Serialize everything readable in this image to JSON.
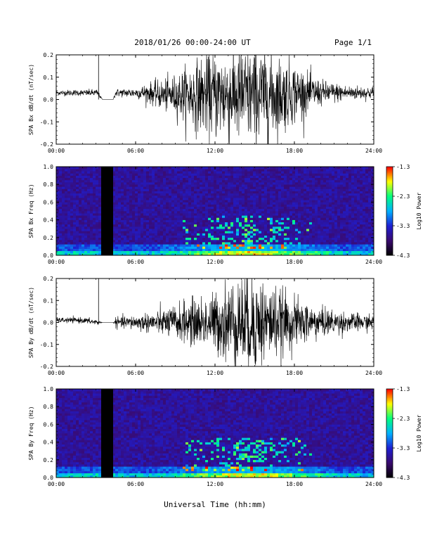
{
  "header": {
    "title": "2018/01/26  00:00-24:00 UT",
    "page": "Page 1/1"
  },
  "footer": {
    "xlabel": "Universal Time (hh:mm)"
  },
  "colors": {
    "background": "#ffffff",
    "trace": "#000000",
    "colormap": [
      "#000000",
      "#3a0a6e",
      "#1e1ed2",
      "#00b0ff",
      "#00ff80",
      "#ffff00",
      "#ff0000"
    ]
  },
  "chart_data": [
    {
      "type": "line",
      "ylabel": "SPA Bx dB/dt (nT/sec)",
      "x_range": [
        0,
        24
      ],
      "ylim": [
        -0.2,
        0.2
      ],
      "x_ticks": [
        "00:00",
        "06:00",
        "12:00",
        "18:00",
        "24:00"
      ],
      "y_ticks": [
        "0.2",
        "0.1",
        "0.0",
        "-0.1",
        "-0.2"
      ],
      "envelope": [
        {
          "t": 0.0,
          "amp": 0.01,
          "base": 0.03
        },
        {
          "t": 1.0,
          "amp": 0.012,
          "base": 0.03
        },
        {
          "t": 2.0,
          "amp": 0.012,
          "base": 0.03
        },
        {
          "t": 3.1,
          "amp": 0.015,
          "base": 0.03
        },
        {
          "t": 3.5,
          "amp": 0.0,
          "base": 0.0
        },
        {
          "t": 4.3,
          "amp": 0.0,
          "base": 0.0
        },
        {
          "t": 4.5,
          "amp": 0.015,
          "base": 0.03
        },
        {
          "t": 6.0,
          "amp": 0.02,
          "base": 0.03
        },
        {
          "t": 7.0,
          "amp": 0.04,
          "base": 0.03
        },
        {
          "t": 8.0,
          "amp": 0.06,
          "base": 0.02
        },
        {
          "t": 9.0,
          "amp": 0.08,
          "base": 0.02
        },
        {
          "t": 10.0,
          "amp": 0.12,
          "base": 0.02
        },
        {
          "t": 11.0,
          "amp": 0.15,
          "base": 0.02
        },
        {
          "t": 12.0,
          "amp": 0.17,
          "base": 0.02
        },
        {
          "t": 13.0,
          "amp": 0.19,
          "base": 0.02
        },
        {
          "t": 14.0,
          "amp": 0.2,
          "base": 0.02
        },
        {
          "t": 15.0,
          "amp": 0.2,
          "base": 0.02
        },
        {
          "t": 16.0,
          "amp": 0.18,
          "base": 0.02
        },
        {
          "t": 17.0,
          "amp": 0.15,
          "base": 0.02
        },
        {
          "t": 18.0,
          "amp": 0.12,
          "base": 0.03
        },
        {
          "t": 19.0,
          "amp": 0.08,
          "base": 0.03
        },
        {
          "t": 20.0,
          "amp": 0.05,
          "base": 0.03
        },
        {
          "t": 22.0,
          "amp": 0.03,
          "base": 0.03
        },
        {
          "t": 24.0,
          "amp": 0.025,
          "base": 0.03
        }
      ]
    },
    {
      "type": "heatmap",
      "ylabel": "SPA Bx Freq (Hz)",
      "x_range": [
        0,
        24
      ],
      "ylim": [
        0,
        1.0
      ],
      "x_ticks": [
        "00:00",
        "06:00",
        "12:00",
        "18:00",
        "24:00"
      ],
      "y_ticks": [
        "1.0",
        "0.8",
        "0.6",
        "0.4",
        "0.2",
        "0.0"
      ],
      "data_gap": [
        3.5,
        4.3
      ],
      "colorbar": {
        "label": "Log10 Power",
        "ticks": [
          "-1.3",
          "-2.3",
          "-3.3",
          "-4.3"
        ],
        "range": [
          -4.3,
          -1.3
        ]
      }
    },
    {
      "type": "line",
      "ylabel": "SPA By dB/dt (nT/sec)",
      "x_range": [
        0,
        24
      ],
      "ylim": [
        -0.2,
        0.2
      ],
      "x_ticks": [
        "00:00",
        "06:00",
        "12:00",
        "18:00",
        "24:00"
      ],
      "y_ticks": [
        "0.2",
        "0.1",
        "0.0",
        "-0.1",
        "-0.2"
      ],
      "envelope": [
        {
          "t": 0.0,
          "amp": 0.01,
          "base": 0.01
        },
        {
          "t": 2.0,
          "amp": 0.012,
          "base": 0.01
        },
        {
          "t": 3.1,
          "amp": 0.012,
          "base": 0.0
        },
        {
          "t": 3.5,
          "amp": 0.0,
          "base": 0.0
        },
        {
          "t": 4.3,
          "amp": 0.0,
          "base": 0.0
        },
        {
          "t": 4.5,
          "amp": 0.02,
          "base": 0.0
        },
        {
          "t": 6.0,
          "amp": 0.03,
          "base": 0.0
        },
        {
          "t": 7.0,
          "amp": 0.04,
          "base": 0.0
        },
        {
          "t": 8.0,
          "amp": 0.05,
          "base": 0.0
        },
        {
          "t": 9.0,
          "amp": 0.07,
          "base": 0.0
        },
        {
          "t": 10.0,
          "amp": 0.09,
          "base": 0.0
        },
        {
          "t": 11.0,
          "amp": 0.1,
          "base": 0.0
        },
        {
          "t": 12.0,
          "amp": 0.12,
          "base": 0.0
        },
        {
          "t": 13.0,
          "amp": 0.17,
          "base": 0.0
        },
        {
          "t": 14.0,
          "amp": 0.2,
          "base": 0.0
        },
        {
          "t": 15.0,
          "amp": 0.2,
          "base": 0.0
        },
        {
          "t": 16.0,
          "amp": 0.16,
          "base": 0.0
        },
        {
          "t": 17.0,
          "amp": 0.13,
          "base": 0.0
        },
        {
          "t": 18.0,
          "amp": 0.1,
          "base": 0.0
        },
        {
          "t": 19.0,
          "amp": 0.08,
          "base": 0.0
        },
        {
          "t": 20.0,
          "amp": 0.06,
          "base": 0.0
        },
        {
          "t": 22.0,
          "amp": 0.04,
          "base": 0.0
        },
        {
          "t": 24.0,
          "amp": 0.03,
          "base": 0.0
        }
      ]
    },
    {
      "type": "heatmap",
      "ylabel": "SPA By Freq (Hz)",
      "x_range": [
        0,
        24
      ],
      "ylim": [
        0,
        1.0
      ],
      "x_ticks": [
        "00:00",
        "06:00",
        "12:00",
        "18:00",
        "24:00"
      ],
      "y_ticks": [
        "1.0",
        "0.8",
        "0.6",
        "0.4",
        "0.2",
        "0.0"
      ],
      "data_gap": [
        3.5,
        4.3
      ],
      "colorbar": {
        "label": "Log10 Power",
        "ticks": [
          "-1.3",
          "-2.3",
          "-3.3",
          "-4.3"
        ],
        "range": [
          -4.3,
          -1.3
        ]
      }
    }
  ]
}
